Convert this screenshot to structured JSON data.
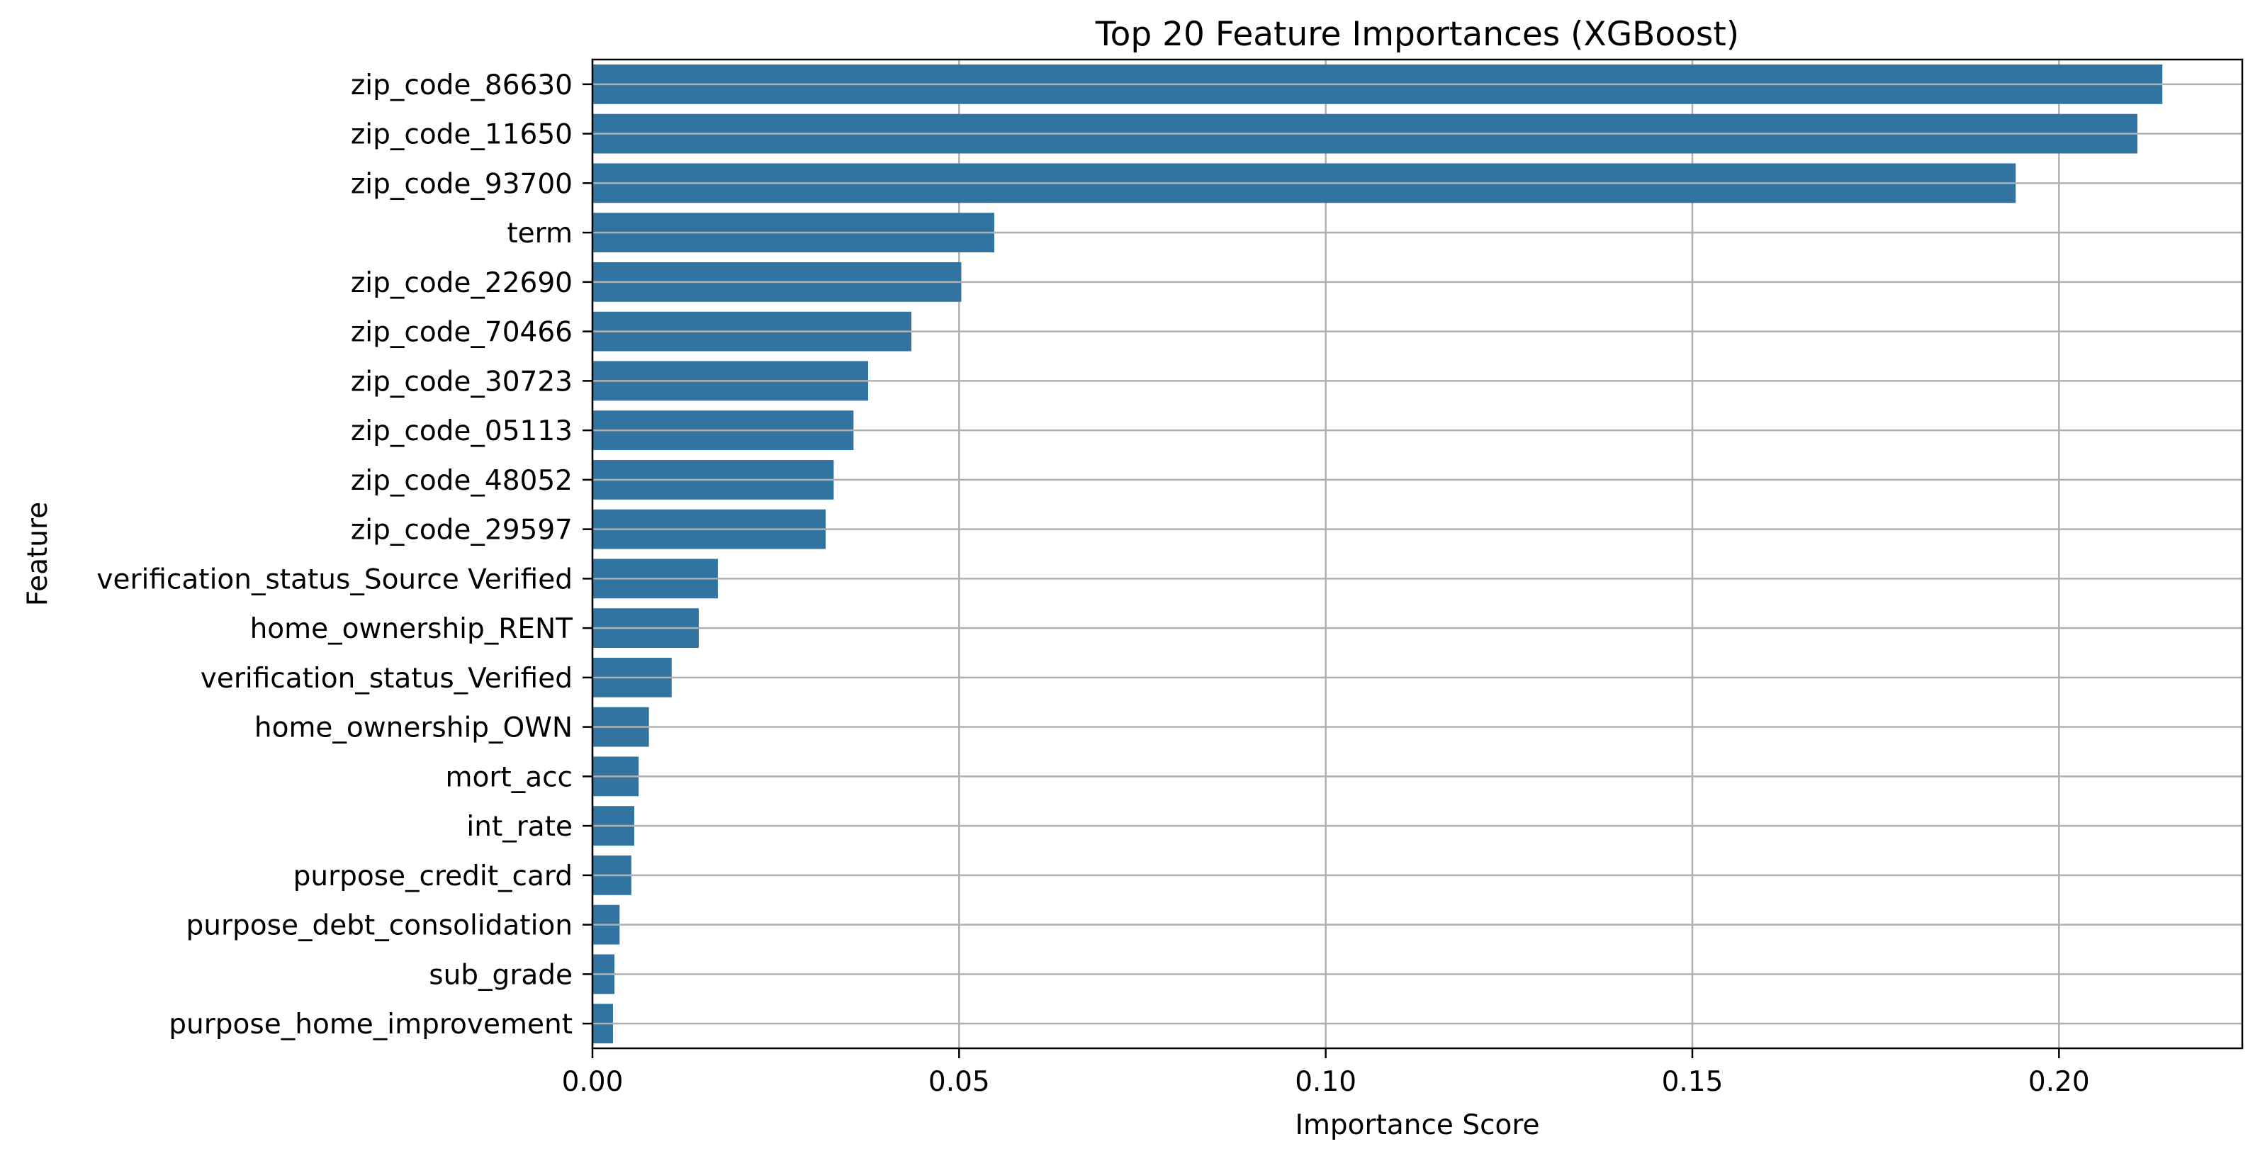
{
  "chart_data": {
    "type": "bar",
    "orientation": "horizontal",
    "title": "Top 20 Feature Importances (XGBoost)",
    "xlabel": "Importance Score",
    "ylabel": "Feature",
    "xlim": [
      0,
      0.225
    ],
    "xticks": [
      0.0,
      0.05,
      0.1,
      0.15,
      0.2
    ],
    "xtick_labels": [
      "0.00",
      "0.05",
      "0.10",
      "0.15",
      "0.20"
    ],
    "grid": true,
    "bar_color": "#3274a1",
    "categories": [
      "zip_code_86630",
      "zip_code_11650",
      "zip_code_93700",
      "term",
      "zip_code_22690",
      "zip_code_70466",
      "zip_code_30723",
      "zip_code_05113",
      "zip_code_48052",
      "zip_code_29597",
      "verification_status_Source Verified",
      "home_ownership_RENT",
      "verification_status_Verified",
      "home_ownership_OWN",
      "mort_acc",
      "int_rate",
      "purpose_credit_card",
      "purpose_debt_consolidation",
      "sub_grade",
      "purpose_home_improvement"
    ],
    "values": [
      0.2141,
      0.2107,
      0.1941,
      0.0548,
      0.0503,
      0.0435,
      0.0376,
      0.0356,
      0.0329,
      0.0318,
      0.0171,
      0.0145,
      0.0108,
      0.0077,
      0.0063,
      0.0057,
      0.0053,
      0.0037,
      0.003,
      0.0028
    ]
  }
}
